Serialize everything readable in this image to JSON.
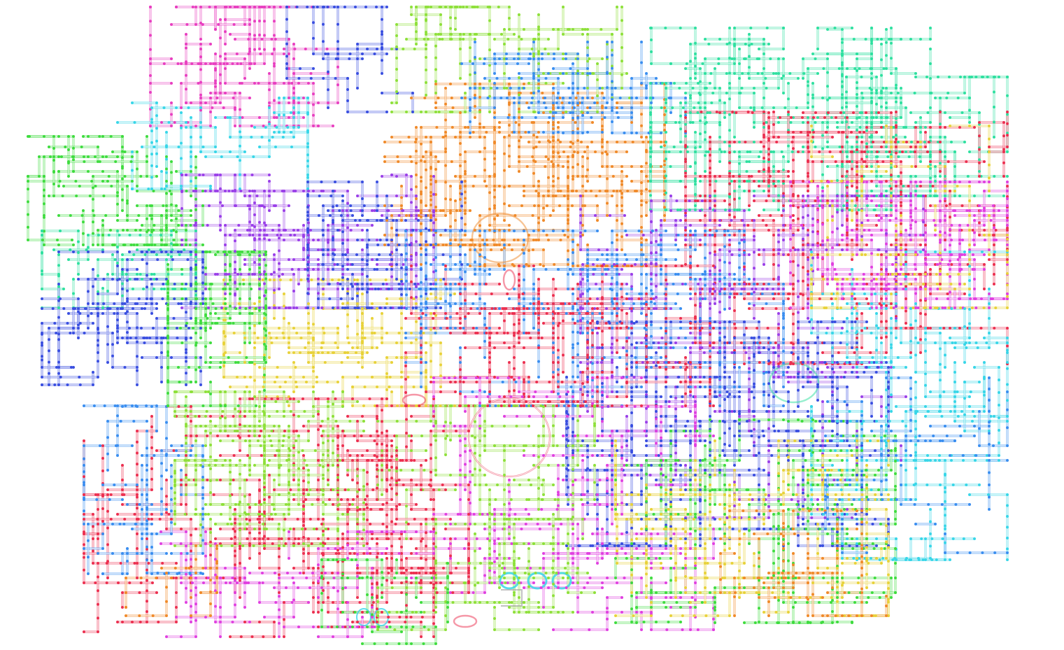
{
  "diagram": {
    "type": "metabolic pathway map",
    "background": "#ffffff",
    "module_colors": {
      "pink": "#e83fc0",
      "green": "#3fdc3f",
      "cyan": "#38d6e8",
      "blue": "#3a4fe0",
      "yellow": "#e8d23a",
      "orange": "#f08a2a",
      "teal": "#2fe0a0",
      "red": "#ec3050",
      "purple": "#9a3fe8",
      "skyblue": "#3a8ef0",
      "lime": "#8ee03a",
      "magenta": "#e040e0"
    }
  }
}
